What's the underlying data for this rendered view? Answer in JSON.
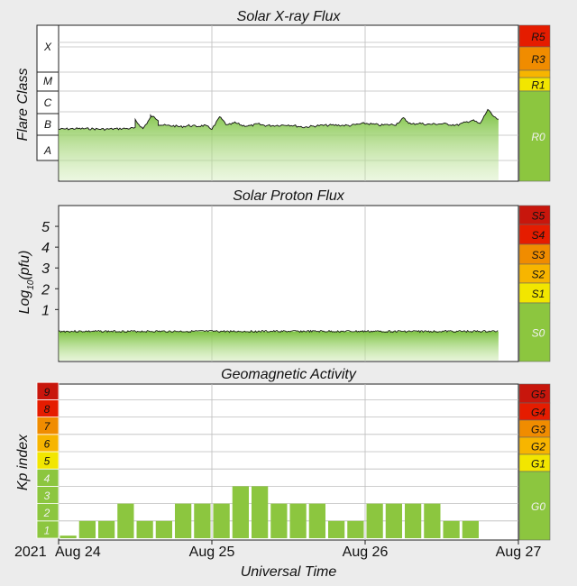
{
  "colors": {
    "background": "#ececec",
    "plot_bg": "#ffffff",
    "grid": "#bdbdbd",
    "green": "#8cc63f",
    "yellow": "#f2e600",
    "orange_light": "#f7b500",
    "orange": "#f08c00",
    "red_orange": "#ee5a00",
    "red": "#e51c00",
    "dark_red": "#c8160c"
  },
  "xray": {
    "title": "Solar X-ray Flux",
    "ylabel": "Flare Class",
    "classes": [
      "X",
      "M",
      "C",
      "B",
      "A"
    ],
    "scale_labels": [
      "R5",
      "R3",
      "R1",
      "R0"
    ]
  },
  "proton": {
    "title": "Solar Proton Flux",
    "ylabel_main": "Log",
    "ylabel_sub": "10",
    "ylabel_unit": "(pfu)",
    "ticks": [
      "1",
      "2",
      "3",
      "4",
      "5"
    ],
    "scale_labels": [
      "S5",
      "S4",
      "S3",
      "S2",
      "S1",
      "S0"
    ]
  },
  "geomag": {
    "title": "Geomagnetic Activity",
    "ylabel": "Kp index",
    "kp_labels": [
      "1",
      "2",
      "3",
      "4",
      "5",
      "6",
      "7",
      "8",
      "9"
    ],
    "scale_labels": [
      "G5",
      "G4",
      "G3",
      "G2",
      "G1",
      "G0"
    ]
  },
  "xaxis": {
    "year": "2021",
    "ticks": [
      "Aug 24",
      "Aug 25",
      "Aug 26",
      "Aug 27"
    ],
    "label": "Universal Time"
  },
  "chart_data": [
    {
      "type": "area",
      "title": "Solar X-ray Flux",
      "ylabel": "Flare Class",
      "x_range": [
        "2021-08-24",
        "2021-08-27"
      ],
      "x": [
        0,
        0.1,
        0.2,
        0.3,
        0.4,
        0.5,
        0.5,
        0.55,
        0.6,
        0.6,
        0.65,
        0.65,
        0.7,
        0.75,
        0.8,
        0.85,
        0.9,
        0.95,
        1.0,
        1.02,
        1.05,
        1.1,
        1.15,
        1.2,
        1.25,
        1.3,
        1.35,
        1.4,
        1.5,
        1.6,
        1.7,
        1.8,
        1.9,
        2.0,
        2.1,
        2.2,
        2.25,
        2.3,
        2.35,
        2.4,
        2.5,
        2.6,
        2.7,
        2.75,
        2.8,
        2.82,
        2.85,
        2.87
      ],
      "values": [
        "B1.8",
        "B1.9",
        "B1.9",
        "B1.8",
        "B1.9",
        "B2.0",
        "B4.3",
        "B1.9",
        "B5.6",
        "B6.8",
        "B4.6",
        "B2.9",
        "B2.6",
        "B2.5",
        "B2.3",
        "B2.6",
        "B2.4",
        "B2.6",
        "B1.9",
        "B2.7",
        "B6.1",
        "B2.6",
        "B3.4",
        "B2.6",
        "B2.5",
        "B3.0",
        "B2.6",
        "B2.6",
        "B2.8",
        "B2.2",
        "B2.6",
        "B2.7",
        "B2.6",
        "B3.2",
        "B2.7",
        "B2.9",
        "B5.3",
        "B2.9",
        "B3.3",
        "B2.9",
        "B3.1",
        "B2.7",
        "B4.4",
        "B3.0",
        "C1.3",
        "B8.4",
        "B5.3",
        "B4.8"
      ]
    },
    {
      "type": "area",
      "title": "Solar Proton Flux",
      "ylabel": "Log10(pfu)",
      "ylim": [
        -1.5,
        6
      ],
      "x_range": [
        "2021-08-24",
        "2021-08-27"
      ],
      "x": [
        0,
        2.87
      ],
      "values": [
        -0.05,
        -0.05
      ]
    },
    {
      "type": "bar",
      "title": "Geomagnetic Activity",
      "ylabel": "Kp index",
      "ylim": [
        0,
        9
      ],
      "x_range": [
        "2021-08-24",
        "2021-08-27"
      ],
      "bin_hours": 3,
      "values": [
        0.15,
        1,
        1,
        2,
        1,
        1,
        2,
        2,
        2,
        3,
        3,
        2,
        2,
        2,
        1,
        1,
        2,
        2,
        2,
        2,
        1,
        1
      ]
    }
  ]
}
